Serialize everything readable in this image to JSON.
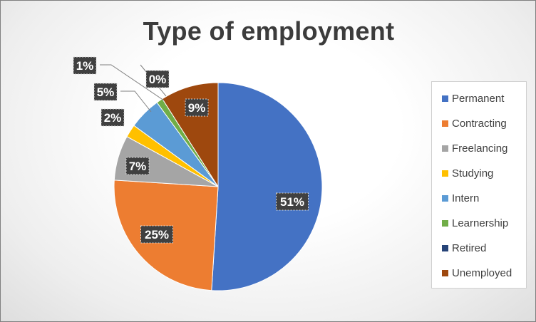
{
  "chart_data": {
    "type": "pie",
    "title": "Type of employment",
    "categories": [
      "Permanent",
      "Contracting",
      "Freelancing",
      "Studying",
      "Intern",
      "Learnership",
      "Retired",
      "Unemployed"
    ],
    "values": [
      51,
      25,
      7,
      2,
      5,
      1,
      0,
      9
    ],
    "data_labels": [
      "51%",
      "25%",
      "7%",
      "2%",
      "5%",
      "1%",
      "0%",
      "9%"
    ],
    "colors": [
      "#4472C4",
      "#ED7D31",
      "#A5A5A5",
      "#FFC000",
      "#5B9BD5",
      "#70AD47",
      "#264478",
      "#9E480E"
    ],
    "legend_position": "right",
    "start_angle": "12 o'clock",
    "direction": "clockwise"
  }
}
